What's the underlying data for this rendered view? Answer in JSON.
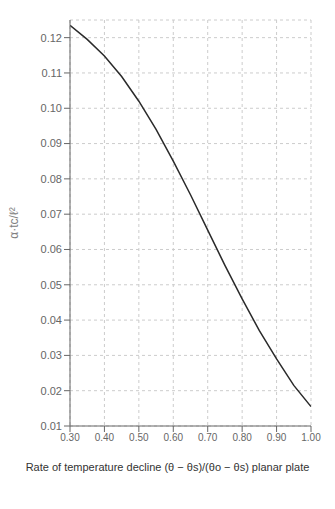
{
  "chart_data": {
    "type": "line",
    "x_label": "Rate of temperature decline  (θ − θs)/(θo − θs)  planar plate",
    "y_label": "α·tc/ℓ²",
    "x": [
      0.3,
      0.35,
      0.4,
      0.45,
      0.5,
      0.55,
      0.6,
      0.65,
      0.7,
      0.75,
      0.8,
      0.85,
      0.9,
      0.95,
      1.0
    ],
    "values": [
      0.1235,
      0.1195,
      0.1148,
      0.109,
      0.102,
      0.094,
      0.085,
      0.0755,
      0.0655,
      0.0555,
      0.046,
      0.037,
      0.029,
      0.0215,
      0.0155
    ],
    "color": "#2a2a2a",
    "xlim": [
      0.3,
      1.0
    ],
    "ylim": [
      0.01,
      0.125
    ],
    "xticks": [
      {
        "value": 0.3,
        "label": "0.30"
      },
      {
        "value": 0.4,
        "label": "0.40"
      },
      {
        "value": 0.5,
        "label": "0.50"
      },
      {
        "value": 0.6,
        "label": "0.60"
      },
      {
        "value": 0.7,
        "label": "0.70"
      },
      {
        "value": 0.8,
        "label": "0.80"
      },
      {
        "value": 0.9,
        "label": "0.90"
      },
      {
        "value": 1.0,
        "label": "1.00"
      }
    ],
    "yticks": [
      {
        "value": 0.01,
        "label": "0.01"
      },
      {
        "value": 0.02,
        "label": "0.02"
      },
      {
        "value": 0.03,
        "label": "0.03"
      },
      {
        "value": 0.04,
        "label": "0.04"
      },
      {
        "value": 0.05,
        "label": "0.05"
      },
      {
        "value": 0.06,
        "label": "0.06"
      },
      {
        "value": 0.07,
        "label": "0.07"
      },
      {
        "value": 0.08,
        "label": "0.08"
      },
      {
        "value": 0.09,
        "label": "0.09"
      },
      {
        "value": 0.1,
        "label": "0.10"
      },
      {
        "value": 0.11,
        "label": "0.11"
      },
      {
        "value": 0.12,
        "label": "0.12"
      }
    ],
    "grid": true
  }
}
